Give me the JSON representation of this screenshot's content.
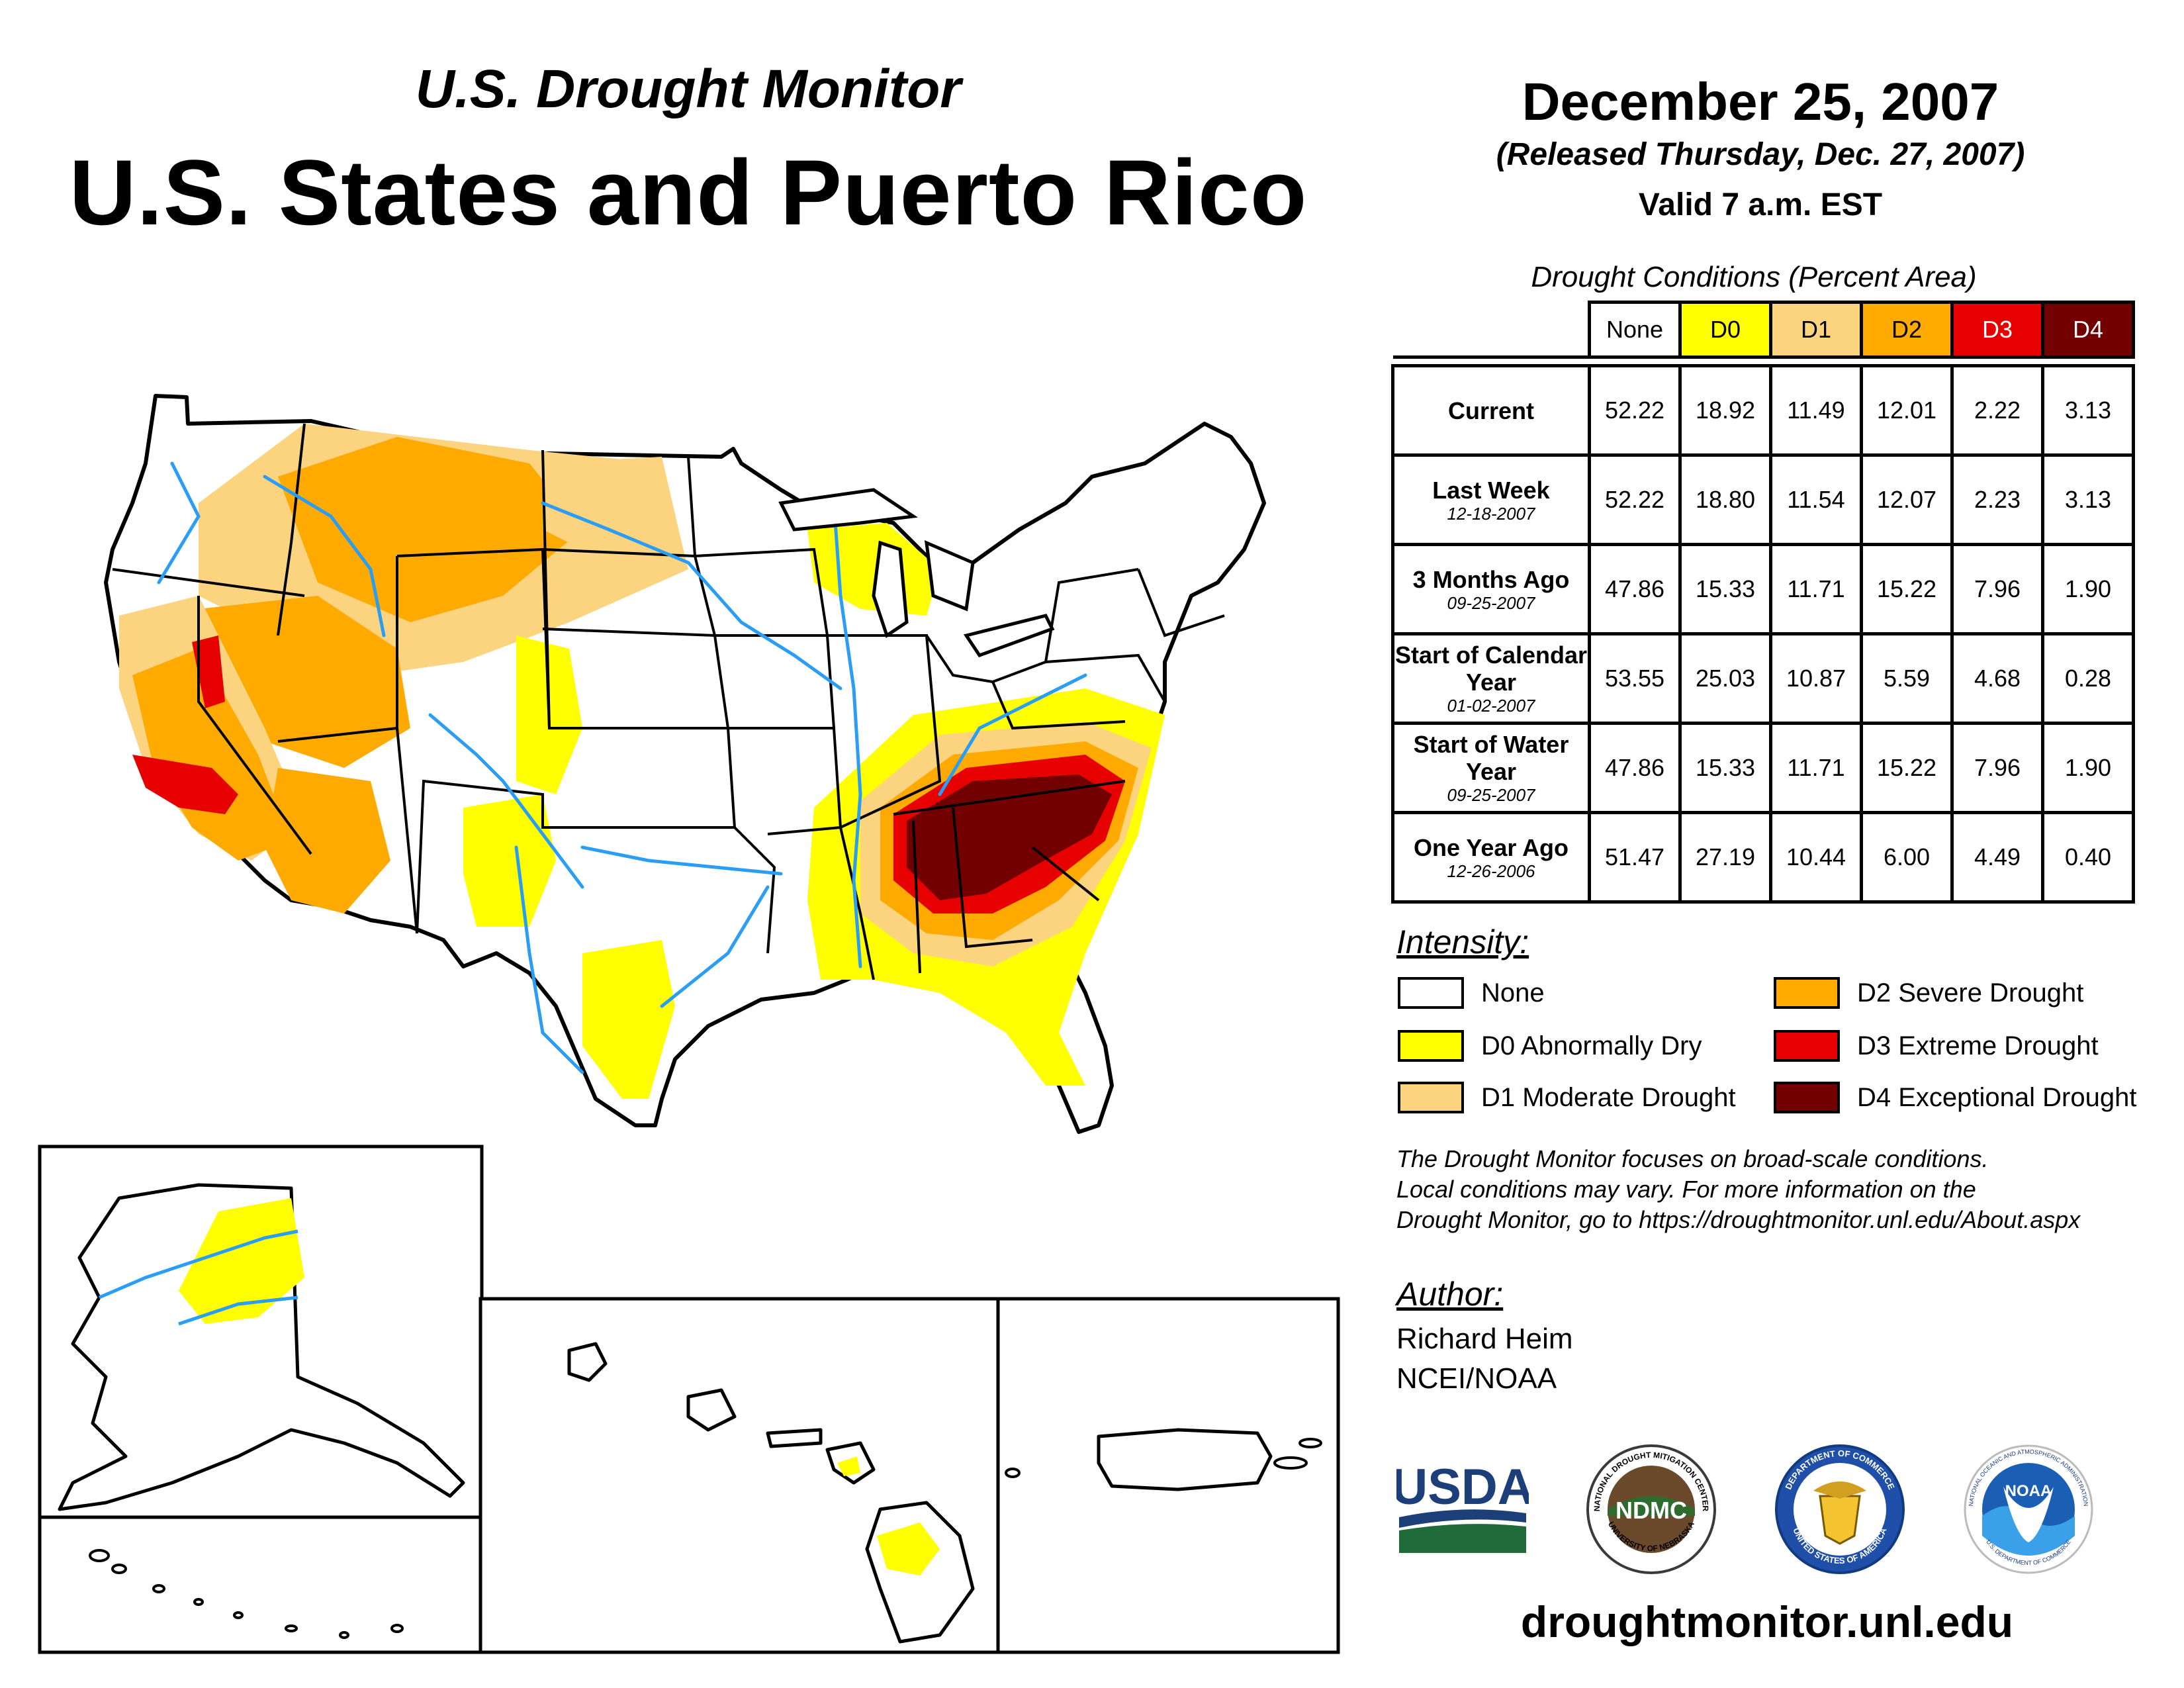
{
  "header": {
    "subtitle": "U.S. Drought Monitor",
    "title": "U.S. States and Puerto Rico",
    "date": "December 25, 2007",
    "released": "(Released Thursday, Dec. 27, 2007)",
    "valid": "Valid 7 a.m. EST"
  },
  "table": {
    "caption": "Drought Conditions (Percent Area)",
    "columns": [
      "None",
      "D0",
      "D1",
      "D2",
      "D3",
      "D4"
    ],
    "column_colors": [
      "#ffffff",
      "#ffff00",
      "#fcd37f",
      "#ffaa00",
      "#e60000",
      "#730000"
    ],
    "rows": [
      {
        "label": "Current",
        "sub": "",
        "values": [
          "52.22",
          "18.92",
          "11.49",
          "12.01",
          "2.22",
          "3.13"
        ]
      },
      {
        "label": "Last Week",
        "sub": "12-18-2007",
        "values": [
          "52.22",
          "18.80",
          "11.54",
          "12.07",
          "2.23",
          "3.13"
        ]
      },
      {
        "label": "3 Months Ago",
        "sub": "09-25-2007",
        "values": [
          "47.86",
          "15.33",
          "11.71",
          "15.22",
          "7.96",
          "1.90"
        ]
      },
      {
        "label": "Start of Calendar Year",
        "sub": "01-02-2007",
        "values": [
          "53.55",
          "25.03",
          "10.87",
          "5.59",
          "4.68",
          "0.28"
        ]
      },
      {
        "label": "Start of Water Year",
        "sub": "09-25-2007",
        "values": [
          "47.86",
          "15.33",
          "11.71",
          "15.22",
          "7.96",
          "1.90"
        ]
      },
      {
        "label": "One Year Ago",
        "sub": "12-26-2006",
        "values": [
          "51.47",
          "27.19",
          "10.44",
          "6.00",
          "4.49",
          "0.40"
        ]
      }
    ]
  },
  "legend": {
    "title": "Intensity:",
    "items": [
      {
        "label": "None",
        "color": "#ffffff"
      },
      {
        "label": "D0 Abnormally Dry",
        "color": "#ffff00"
      },
      {
        "label": "D1 Moderate Drought",
        "color": "#fcd37f"
      },
      {
        "label": "D2 Severe Drought",
        "color": "#ffaa00"
      },
      {
        "label": "D3 Extreme Drought",
        "color": "#e60000"
      },
      {
        "label": "D4 Exceptional Drought",
        "color": "#730000"
      }
    ]
  },
  "note": {
    "line1": "The Drought Monitor focuses on broad-scale conditions.",
    "line2": "Local conditions may vary. For more information on the",
    "line3": "Drought Monitor, go to https://droughtmonitor.unl.edu/About.aspx"
  },
  "author": {
    "title": "Author:",
    "name": "Richard Heim",
    "org": "NCEI/NOAA"
  },
  "logos": {
    "usda": "USDA",
    "ndmc": "NDMC",
    "ndmc_ring_top": "NATIONAL DROUGHT MITIGATION CENTER",
    "ndmc_ring_bottom": "UNIVERSITY OF NEBRASKA",
    "commerce_ring_top": "DEPARTMENT OF COMMERCE",
    "commerce_ring_bottom": "UNITED STATES OF AMERICA",
    "noaa": "NOAA",
    "noaa_ring_top": "NATIONAL OCEANIC AND ATMOSPHERIC ADMINISTRATION",
    "noaa_ring_bottom": "U.S. DEPARTMENT OF COMMERCE"
  },
  "website": "droughtmonitor.unl.edu",
  "colors": {
    "water": "#2a9df4",
    "d0": "#ffff00",
    "d1": "#fcd37f",
    "d2": "#ffaa00",
    "d3": "#e60000",
    "d4": "#730000"
  }
}
